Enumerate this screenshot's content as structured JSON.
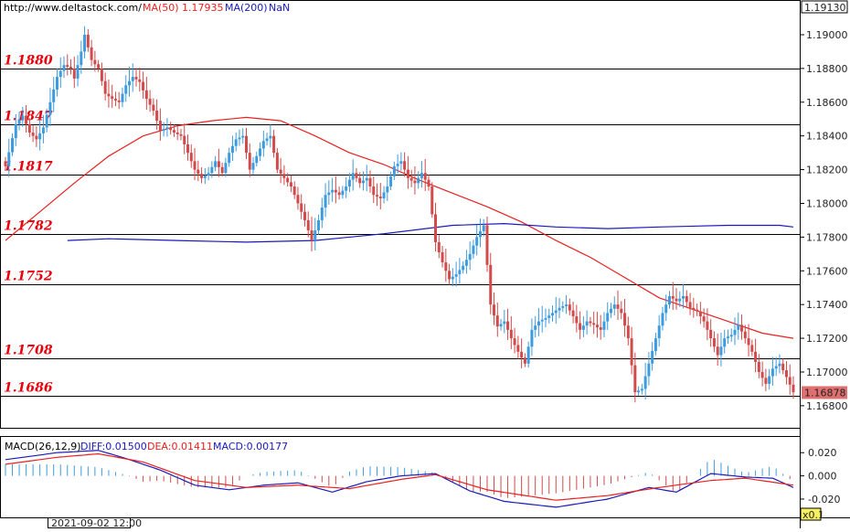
{
  "header": {
    "url": "http://www.deltastock.com/",
    "ma50_label": "MA(50)",
    "ma50_value": "1.17935",
    "ma200_label": "MA(200)",
    "ma200_value": "NaN"
  },
  "macd_header": {
    "title": "MACD(26,12,9)",
    "diff": "DIFF:0.01500",
    "dea": "DEA:0.01411",
    "macd": "MACD:0.00177"
  },
  "footer": {
    "date_label": "2021-09-02 12:00",
    "zoom_label": "x0.1"
  },
  "colors": {
    "bull": "#3d9be0",
    "bear": "#d24a4a",
    "ma50": "#e82020",
    "ma200": "#1a1ab8",
    "level_text": "#e8000b",
    "price_tag": "#e07070"
  },
  "chart_data": [
    {
      "type": "candlestick",
      "name": "price",
      "ylim": [
        1.1668,
        1.1913
      ],
      "y_ticks": [
        "1.19000",
        "1.18800",
        "1.18600",
        "1.18400",
        "1.18200",
        "1.18000",
        "1.17800",
        "1.17600",
        "1.17400",
        "1.17200",
        "1.17000",
        "1.16800"
      ],
      "top_value": "1.19130",
      "last_price": "1.16878",
      "levels": [
        {
          "value": 1.188,
          "label": "1.1880"
        },
        {
          "value": 1.1847,
          "label": "1.1847"
        },
        {
          "value": 1.1817,
          "label": "1.1817"
        },
        {
          "value": 1.1782,
          "label": "1.1782"
        },
        {
          "value": 1.1752,
          "label": "1.1752"
        },
        {
          "value": 1.1708,
          "label": "1.1708"
        },
        {
          "value": 1.1686,
          "label": "1.1686"
        }
      ],
      "anchors_close": [
        [
          0,
          1.1822
        ],
        [
          3,
          1.1847
        ],
        [
          5,
          1.1852
        ],
        [
          7,
          1.1842
        ],
        [
          9,
          1.1838
        ],
        [
          11,
          1.1845
        ],
        [
          13,
          1.186
        ],
        [
          15,
          1.1875
        ],
        [
          17,
          1.1882
        ],
        [
          19,
          1.188
        ],
        [
          20,
          1.1874
        ],
        [
          22,
          1.189
        ],
        [
          23,
          1.19
        ],
        [
          25,
          1.1885
        ],
        [
          27,
          1.188
        ],
        [
          29,
          1.1865
        ],
        [
          31,
          1.1862
        ],
        [
          33,
          1.186
        ],
        [
          35,
          1.187
        ],
        [
          37,
          1.1875
        ],
        [
          39,
          1.1872
        ],
        [
          41,
          1.1862
        ],
        [
          43,
          1.1855
        ],
        [
          45,
          1.1843
        ],
        [
          47,
          1.1845
        ],
        [
          49,
          1.1842
        ],
        [
          51,
          1.184
        ],
        [
          53,
          1.183
        ],
        [
          55,
          1.182
        ],
        [
          57,
          1.1815
        ],
        [
          59,
          1.1818
        ],
        [
          61,
          1.1825
        ],
        [
          63,
          1.1818
        ],
        [
          65,
          1.183
        ],
        [
          67,
          1.1838
        ],
        [
          69,
          1.184
        ],
        [
          71,
          1.182
        ],
        [
          73,
          1.1828
        ],
        [
          75,
          1.1837
        ],
        [
          77,
          1.184
        ],
        [
          79,
          1.182
        ],
        [
          81,
          1.1815
        ],
        [
          83,
          1.181
        ],
        [
          85,
          1.18
        ],
        [
          87,
          1.179
        ],
        [
          89,
          1.1778
        ],
        [
          91,
          1.179
        ],
        [
          93,
          1.1805
        ],
        [
          95,
          1.1808
        ],
        [
          97,
          1.1805
        ],
        [
          99,
          1.181
        ],
        [
          101,
          1.1818
        ],
        [
          103,
          1.1812
        ],
        [
          105,
          1.1815
        ],
        [
          107,
          1.1805
        ],
        [
          109,
          1.1803
        ],
        [
          111,
          1.181
        ],
        [
          113,
          1.1822
        ],
        [
          115,
          1.1825
        ],
        [
          117,
          1.1815
        ],
        [
          119,
          1.1812
        ],
        [
          121,
          1.1818
        ],
        [
          123,
          1.181
        ],
        [
          125,
          1.1777
        ],
        [
          127,
          1.1765
        ],
        [
          129,
          1.1755
        ],
        [
          131,
          1.1758
        ],
        [
          133,
          1.1763
        ],
        [
          135,
          1.177
        ],
        [
          137,
          1.178
        ],
        [
          139,
          1.1787
        ],
        [
          141,
          1.174
        ],
        [
          143,
          1.1727
        ],
        [
          145,
          1.173
        ],
        [
          147,
          1.172
        ],
        [
          149,
          1.1712
        ],
        [
          151,
          1.1705
        ],
        [
          153,
          1.1725
        ],
        [
          155,
          1.173
        ],
        [
          157,
          1.1732
        ],
        [
          159,
          1.1735
        ],
        [
          161,
          1.1738
        ],
        [
          163,
          1.174
        ],
        [
          165,
          1.1733
        ],
        [
          167,
          1.1725
        ],
        [
          169,
          1.173
        ],
        [
          171,
          1.1728
        ],
        [
          173,
          1.1725
        ],
        [
          175,
          1.1735
        ],
        [
          177,
          1.174
        ],
        [
          179,
          1.1735
        ],
        [
          181,
          1.172
        ],
        [
          183,
          1.1688
        ],
        [
          185,
          1.169
        ],
        [
          187,
          1.1705
        ],
        [
          189,
          1.172
        ],
        [
          191,
          1.1735
        ],
        [
          193,
          1.1745
        ],
        [
          195,
          1.1742
        ],
        [
          197,
          1.1745
        ],
        [
          199,
          1.1738
        ],
        [
          201,
          1.1736
        ],
        [
          203,
          1.173
        ],
        [
          205,
          1.172
        ],
        [
          207,
          1.171
        ],
        [
          209,
          1.172
        ],
        [
          211,
          1.1722
        ],
        [
          213,
          1.1728
        ],
        [
          215,
          1.172
        ],
        [
          217,
          1.1712
        ],
        [
          219,
          1.17
        ],
        [
          221,
          1.1693
        ],
        [
          223,
          1.1702
        ],
        [
          225,
          1.1705
        ],
        [
          227,
          1.1697
        ],
        [
          229,
          1.1688
        ]
      ],
      "ma50_points": [
        [
          0,
          1.1778
        ],
        [
          10,
          1.1795
        ],
        [
          20,
          1.1812
        ],
        [
          30,
          1.1828
        ],
        [
          40,
          1.184
        ],
        [
          50,
          1.1846
        ],
        [
          60,
          1.1849
        ],
        [
          70,
          1.1851
        ],
        [
          80,
          1.1849
        ],
        [
          90,
          1.184
        ],
        [
          100,
          1.183
        ],
        [
          110,
          1.1823
        ],
        [
          120,
          1.1814
        ],
        [
          130,
          1.1806
        ],
        [
          140,
          1.1798
        ],
        [
          150,
          1.1789
        ],
        [
          160,
          1.1778
        ],
        [
          170,
          1.1768
        ],
        [
          180,
          1.1756
        ],
        [
          190,
          1.1744
        ],
        [
          200,
          1.1737
        ],
        [
          210,
          1.173
        ],
        [
          220,
          1.1723
        ],
        [
          229,
          1.172
        ]
      ],
      "ma200_points": [
        [
          18,
          1.1778
        ],
        [
          30,
          1.1779
        ],
        [
          50,
          1.1778
        ],
        [
          70,
          1.1777
        ],
        [
          90,
          1.1778
        ],
        [
          110,
          1.1782
        ],
        [
          130,
          1.1787
        ],
        [
          145,
          1.1788
        ],
        [
          160,
          1.1786
        ],
        [
          175,
          1.1785
        ],
        [
          190,
          1.1786
        ],
        [
          210,
          1.1787
        ],
        [
          225,
          1.1787
        ],
        [
          229,
          1.1786
        ]
      ]
    },
    {
      "type": "macd",
      "name": "MACD(26,12,9)",
      "ylim": [
        -0.035,
        0.032
      ],
      "y_ticks": [
        "0.020",
        "0.000",
        "-0.020"
      ],
      "diff_points": [
        [
          0,
          0.014
        ],
        [
          15,
          0.02
        ],
        [
          27,
          0.022
        ],
        [
          35,
          0.015
        ],
        [
          45,
          0.005
        ],
        [
          55,
          -0.008
        ],
        [
          65,
          -0.012
        ],
        [
          75,
          -0.008
        ],
        [
          85,
          -0.006
        ],
        [
          95,
          -0.014
        ],
        [
          105,
          -0.005
        ],
        [
          115,
          0.0
        ],
        [
          125,
          0.002
        ],
        [
          135,
          -0.013
        ],
        [
          145,
          -0.022
        ],
        [
          160,
          -0.027
        ],
        [
          175,
          -0.02
        ],
        [
          187,
          -0.01
        ],
        [
          195,
          -0.014
        ],
        [
          205,
          0.002
        ],
        [
          215,
          -0.001
        ],
        [
          223,
          -0.002
        ],
        [
          229,
          -0.01
        ]
      ],
      "dea_points": [
        [
          0,
          0.01
        ],
        [
          15,
          0.016
        ],
        [
          27,
          0.019
        ],
        [
          40,
          0.012
        ],
        [
          55,
          -0.004
        ],
        [
          70,
          -0.01
        ],
        [
          85,
          -0.008
        ],
        [
          100,
          -0.011
        ],
        [
          115,
          -0.003
        ],
        [
          125,
          0.001
        ],
        [
          140,
          -0.012
        ],
        [
          160,
          -0.021
        ],
        [
          175,
          -0.017
        ],
        [
          190,
          -0.01
        ],
        [
          205,
          -0.004
        ],
        [
          215,
          -0.002
        ],
        [
          229,
          -0.008
        ]
      ]
    }
  ]
}
